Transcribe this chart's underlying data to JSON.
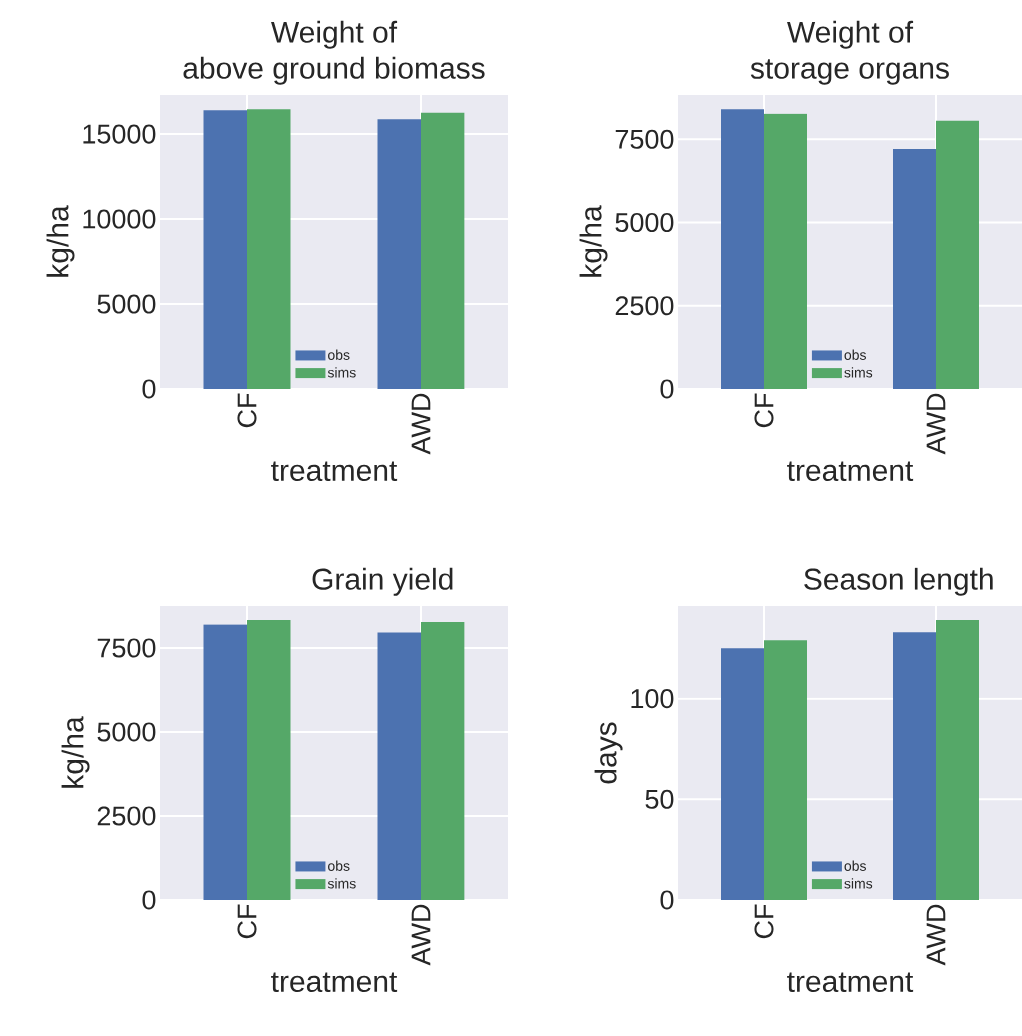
{
  "chart_data": [
    {
      "type": "bar",
      "title": "Weight of above ground biomass",
      "xlabel": "treatment",
      "ylabel": "kg/ha",
      "categories": [
        "CF",
        "AWD"
      ],
      "series": [
        {
          "name": "obs",
          "color": "#4c72b0",
          "values": [
            16400,
            15870
          ]
        },
        {
          "name": "sims",
          "color": "#55a868",
          "values": [
            16460,
            16260
          ]
        }
      ],
      "ylim": [
        0,
        17300
      ],
      "yticks": [
        0,
        5000,
        10000,
        15000
      ],
      "grid": true,
      "legend": "bottom"
    },
    {
      "type": "bar",
      "title": "Weight of storage organs",
      "xlabel": "treatment",
      "ylabel": "kg/ha",
      "categories": [
        "CF",
        "AWD"
      ],
      "series": [
        {
          "name": "obs",
          "color": "#4c72b0",
          "values": [
            8400,
            7210
          ]
        },
        {
          "name": "sims",
          "color": "#55a868",
          "values": [
            8270,
            8060
          ]
        }
      ],
      "ylim": [
        0,
        8830
      ],
      "yticks": [
        0,
        2500,
        5000,
        7500
      ],
      "grid": true,
      "legend": "bottom"
    },
    {
      "type": "bar",
      "title": "Grain yield",
      "xlabel": "treatment",
      "ylabel": "kg/ha",
      "categories": [
        "CF",
        "AWD"
      ],
      "series": [
        {
          "name": "obs",
          "color": "#4c72b0",
          "values": [
            8200,
            7960
          ]
        },
        {
          "name": "sims",
          "color": "#55a868",
          "values": [
            8330,
            8270
          ]
        }
      ],
      "ylim": [
        0,
        8750
      ],
      "yticks": [
        0,
        2500,
        5000,
        7500
      ],
      "grid": true,
      "legend": "bottom"
    },
    {
      "type": "bar",
      "title": "Season length",
      "xlabel": "treatment",
      "ylabel": "days",
      "categories": [
        "CF",
        "AWD"
      ],
      "series": [
        {
          "name": "obs",
          "color": "#4c72b0",
          "values": [
            125,
            133
          ]
        },
        {
          "name": "sims",
          "color": "#55a868",
          "values": [
            129,
            139
          ]
        }
      ],
      "ylim": [
        0,
        146
      ],
      "yticks": [
        0,
        50,
        100
      ],
      "grid": true,
      "legend": "bottom"
    }
  ]
}
